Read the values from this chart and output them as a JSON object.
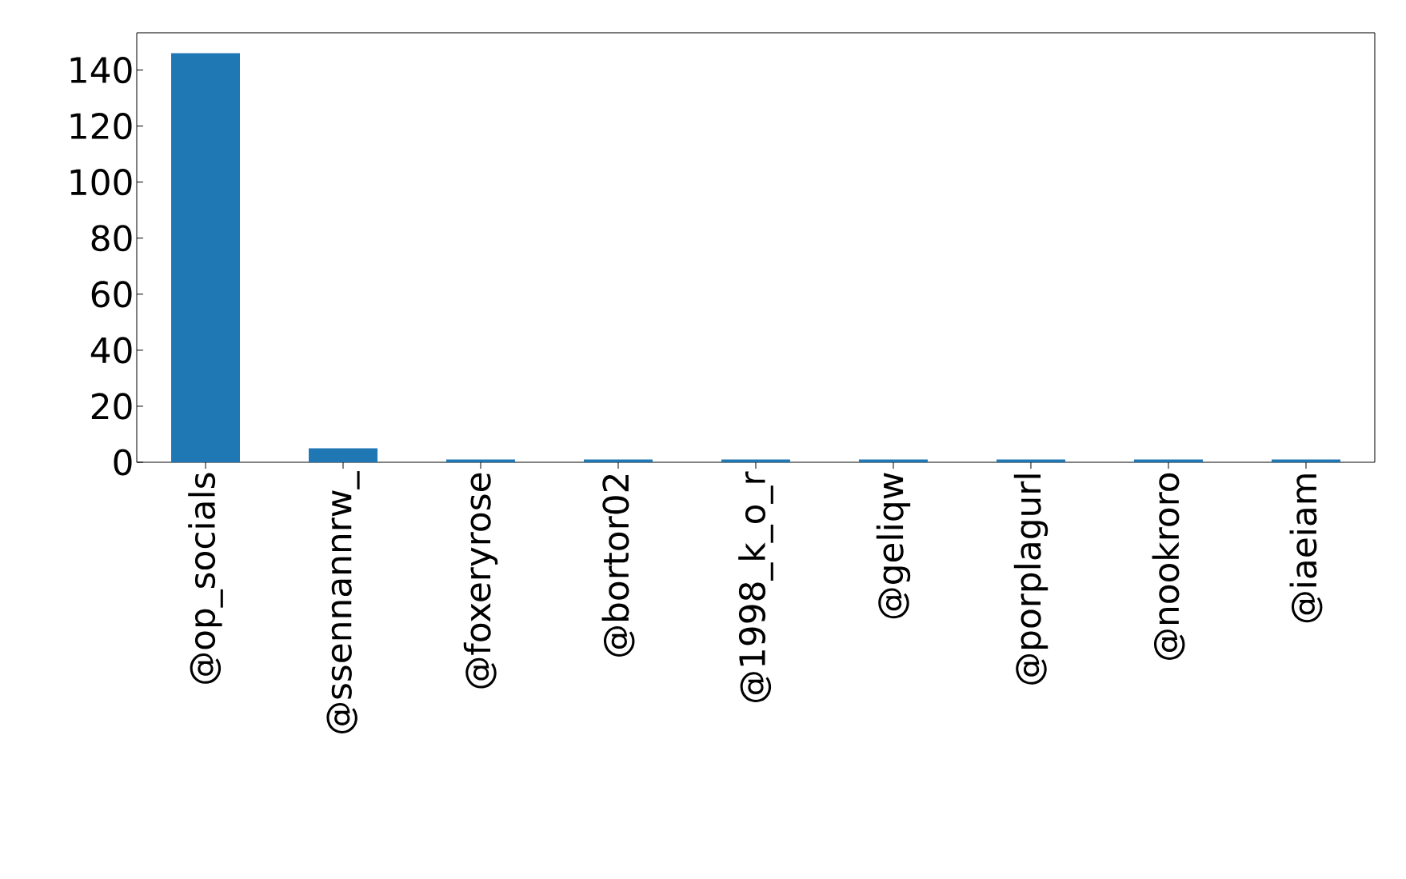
{
  "chart_data": {
    "type": "bar",
    "categories": [
      "@op_socials",
      "@ssennannrw_",
      "@foxeryrose",
      "@bortor02",
      "@1998_k_o_r",
      "@geliqw",
      "@porplagurl",
      "@nookroro",
      "@iaeiam"
    ],
    "values": [
      146,
      5,
      1,
      1,
      1,
      1,
      1,
      1,
      1
    ],
    "color": "#1f77b4",
    "ylim": [
      0,
      153.3
    ],
    "yticks": [
      0,
      20,
      40,
      60,
      80,
      100,
      120,
      140
    ],
    "grid": false
  }
}
